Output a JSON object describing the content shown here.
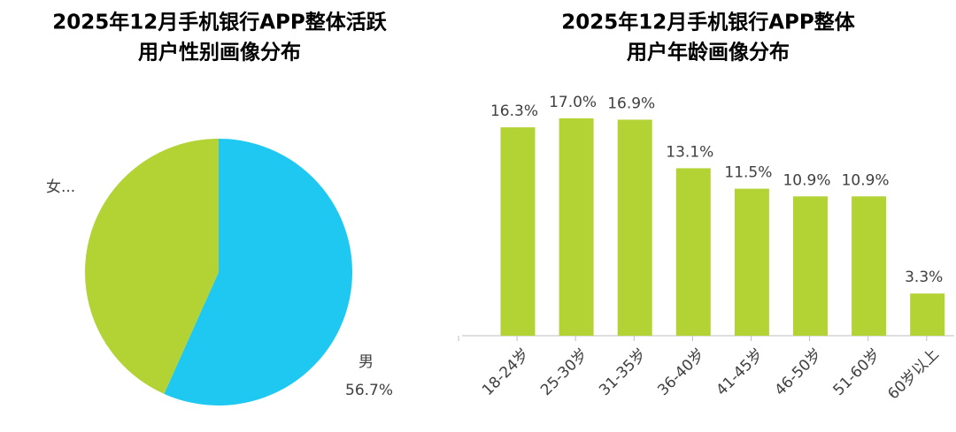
{
  "chart_data": [
    {
      "type": "pie",
      "title": [
        "2025年12月手机银行APP整体活跃",
        "用户性别画像分布"
      ],
      "categories": [
        "男",
        "女..."
      ],
      "values": [
        56.7,
        43.3
      ],
      "value_labels": [
        "56.7%",
        null
      ],
      "colors": [
        "#1ec8f0",
        "#b3d335"
      ]
    },
    {
      "type": "bar",
      "title": [
        "2025年12月手机银行APP整体",
        "用户年龄画像分布"
      ],
      "categories": [
        "18-24岁",
        "25-30岁",
        "31-35岁",
        "36-40岁",
        "41-45岁",
        "46-50岁",
        "51-60岁",
        "60岁以上"
      ],
      "values": [
        16.3,
        17.0,
        16.9,
        13.1,
        11.5,
        10.9,
        10.9,
        3.3
      ],
      "value_labels": [
        "16.3%",
        "17.0%",
        "16.9%",
        "13.1%",
        "11.5%",
        "10.9%",
        "10.9%",
        "3.3%"
      ],
      "color": "#b3d335"
    }
  ]
}
